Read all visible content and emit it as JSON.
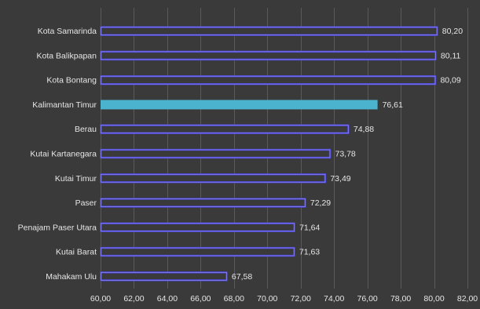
{
  "chart_data": {
    "type": "bar",
    "orientation": "horizontal",
    "categories": [
      "Kota Samarinda",
      "Kota Balikpapan",
      "Kota Bontang",
      "Kalimantan Timur",
      "Berau",
      "Kutai Kartanegara",
      "Kutai Timur",
      "Paser",
      "Penajam Paser Utara",
      "Kutai Barat",
      "Mahakam Ulu"
    ],
    "values": [
      80.2,
      80.11,
      80.09,
      76.61,
      74.88,
      73.78,
      73.49,
      72.29,
      71.64,
      71.63,
      67.58
    ],
    "value_labels": [
      "80,20",
      "80,11",
      "80,09",
      "76,61",
      "74,88",
      "73,78",
      "73,49",
      "72,29",
      "71,64",
      "71,63",
      "67,58"
    ],
    "highlight_category": "Kalimantan Timur",
    "xlim": [
      60,
      82
    ],
    "xticks": [
      60,
      62,
      64,
      66,
      68,
      70,
      72,
      74,
      76,
      78,
      80,
      82
    ],
    "xtick_labels": [
      "60,00",
      "62,00",
      "64,00",
      "66,00",
      "68,00",
      "70,00",
      "72,00",
      "74,00",
      "76,00",
      "78,00",
      "80,00",
      "82,00"
    ],
    "title": "",
    "xlabel": "",
    "ylabel": "",
    "grid": "vertical",
    "legend": "none",
    "colors": {
      "background": "#3a3a3a",
      "grid": "#5a5a5a",
      "bar_fill": "#3a3a3a",
      "bar_outline": "#4a43d6",
      "bar_outline_inner": "#8a86f0",
      "highlight_fill": "#4cb3cf",
      "label_text": "#e6e6e6"
    }
  }
}
